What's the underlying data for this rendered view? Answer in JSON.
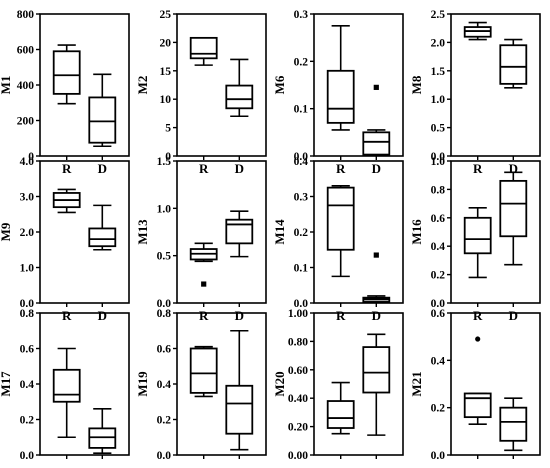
{
  "chart_data": [
    {
      "type": "box",
      "ylabel": "M1",
      "ylim": [
        0,
        800
      ],
      "yticks": [
        "0",
        "200",
        "400",
        "600",
        "800"
      ],
      "categories": [
        "R",
        "D"
      ],
      "boxes": [
        {
          "category": "R",
          "min": 295,
          "q1": 350,
          "median": 455,
          "q3": 590,
          "max": 625,
          "outliers": []
        },
        {
          "category": "D",
          "min": 55,
          "q1": 75,
          "median": 195,
          "q3": 330,
          "max": 460,
          "outliers": []
        }
      ]
    },
    {
      "type": "box",
      "ylabel": "M2",
      "ylim": [
        0,
        25
      ],
      "yticks": [
        "0",
        "5",
        "10",
        "15",
        "20",
        "25"
      ],
      "categories": [
        "R",
        "D"
      ],
      "boxes": [
        {
          "category": "R",
          "min": 16,
          "q1": 17.2,
          "median": 18,
          "q3": 20.8,
          "max": 20.8,
          "outliers": []
        },
        {
          "category": "D",
          "min": 7,
          "q1": 8.4,
          "median": 10,
          "q3": 12.4,
          "max": 17,
          "outliers": []
        }
      ]
    },
    {
      "type": "box",
      "ylabel": "M6",
      "ylim": [
        0,
        0.3
      ],
      "yticks": [
        "0.0",
        "0.1",
        "0.2",
        "0.3"
      ],
      "categories": [
        "R",
        "D"
      ],
      "boxes": [
        {
          "category": "R",
          "min": 0.055,
          "q1": 0.07,
          "median": 0.1,
          "q3": 0.18,
          "max": 0.275,
          "outliers": []
        },
        {
          "category": "D",
          "min": 0.001,
          "q1": 0.003,
          "median": 0.03,
          "q3": 0.05,
          "max": 0.055,
          "outliers": [
            0.145
          ]
        }
      ]
    },
    {
      "type": "box",
      "ylabel": "M8",
      "ylim": [
        0,
        2.5
      ],
      "yticks": [
        "0.0",
        "0.5",
        "1.0",
        "1.5",
        "2.0",
        "2.5"
      ],
      "categories": [
        "R",
        "D"
      ],
      "boxes": [
        {
          "category": "R",
          "min": 2.05,
          "q1": 2.1,
          "median": 2.2,
          "q3": 2.27,
          "max": 2.35,
          "outliers": []
        },
        {
          "category": "D",
          "min": 1.2,
          "q1": 1.27,
          "median": 1.57,
          "q3": 1.95,
          "max": 2.05,
          "outliers": []
        }
      ]
    },
    {
      "type": "box",
      "ylabel": "M9",
      "ylim": [
        0,
        4
      ],
      "yticks": [
        "0.0",
        "1.0",
        "2.0",
        "3.0",
        "4.0"
      ],
      "categories": [
        "R",
        "D"
      ],
      "boxes": [
        {
          "category": "R",
          "min": 2.55,
          "q1": 2.7,
          "median": 2.9,
          "q3": 3.1,
          "max": 3.2,
          "outliers": []
        },
        {
          "category": "D",
          "min": 1.5,
          "q1": 1.6,
          "median": 1.8,
          "q3": 2.1,
          "max": 2.75,
          "outliers": []
        }
      ]
    },
    {
      "type": "box",
      "ylabel": "M13",
      "ylim": [
        0,
        1.5
      ],
      "yticks": [
        "0.0",
        "0.5",
        "1.0",
        "1.5"
      ],
      "categories": [
        "R",
        "D"
      ],
      "boxes": [
        {
          "category": "R",
          "min": 0.44,
          "q1": 0.46,
          "median": 0.52,
          "q3": 0.57,
          "max": 0.63,
          "outliers": [
            0.2
          ]
        },
        {
          "category": "D",
          "min": 0.49,
          "q1": 0.63,
          "median": 0.83,
          "q3": 0.88,
          "max": 0.97,
          "outliers": []
        }
      ]
    },
    {
      "type": "box",
      "ylabel": "M14",
      "ylim": [
        0,
        0.4
      ],
      "yticks": [
        "0.0",
        "0.1",
        "0.2",
        "0.3",
        "0.4"
      ],
      "categories": [
        "R",
        "D"
      ],
      "boxes": [
        {
          "category": "R",
          "min": 0.075,
          "q1": 0.15,
          "median": 0.275,
          "q3": 0.325,
          "max": 0.33,
          "outliers": []
        },
        {
          "category": "D",
          "min": 0.001,
          "q1": 0.003,
          "median": 0.01,
          "q3": 0.015,
          "max": 0.02,
          "outliers": [
            0.135
          ]
        }
      ]
    },
    {
      "type": "box",
      "ylabel": "M16",
      "ylim": [
        0,
        1.0
      ],
      "yticks": [
        "0.0",
        "0.2",
        "0.4",
        "0.6",
        "0.8",
        "1.0"
      ],
      "categories": [
        "R",
        "D"
      ],
      "boxes": [
        {
          "category": "R",
          "min": 0.18,
          "q1": 0.35,
          "median": 0.45,
          "q3": 0.6,
          "max": 0.67,
          "outliers": []
        },
        {
          "category": "D",
          "min": 0.27,
          "q1": 0.47,
          "median": 0.7,
          "q3": 0.86,
          "max": 0.92,
          "outliers": []
        }
      ]
    },
    {
      "type": "box",
      "ylabel": "M17",
      "ylim": [
        0,
        0.8
      ],
      "yticks": [
        "0.0",
        "0.2",
        "0.4",
        "0.6",
        "0.8"
      ],
      "categories": [
        "R",
        "D"
      ],
      "boxes": [
        {
          "category": "R",
          "min": 0.1,
          "q1": 0.3,
          "median": 0.34,
          "q3": 0.48,
          "max": 0.6,
          "outliers": []
        },
        {
          "category": "D",
          "min": 0.01,
          "q1": 0.04,
          "median": 0.1,
          "q3": 0.15,
          "max": 0.26,
          "outliers": []
        }
      ]
    },
    {
      "type": "box",
      "ylabel": "M19",
      "ylim": [
        0,
        0.8
      ],
      "yticks": [
        "0.0",
        "0.2",
        "0.4",
        "0.6",
        "0.8"
      ],
      "categories": [
        "R",
        "D"
      ],
      "boxes": [
        {
          "category": "R",
          "min": 0.33,
          "q1": 0.35,
          "median": 0.46,
          "q3": 0.6,
          "max": 0.61,
          "outliers": []
        },
        {
          "category": "D",
          "min": 0.03,
          "q1": 0.12,
          "median": 0.29,
          "q3": 0.39,
          "max": 0.7,
          "outliers": []
        }
      ]
    },
    {
      "type": "box",
      "ylabel": "M20",
      "ylim": [
        0,
        1.0
      ],
      "yticks": [
        "0.00",
        "0.20",
        "0.40",
        "0.60",
        "0.80",
        "1.00"
      ],
      "categories": [
        "R",
        "D"
      ],
      "boxes": [
        {
          "category": "R",
          "min": 0.15,
          "q1": 0.19,
          "median": 0.26,
          "q3": 0.38,
          "max": 0.51,
          "outliers": []
        },
        {
          "category": "D",
          "min": 0.14,
          "q1": 0.44,
          "median": 0.58,
          "q3": 0.76,
          "max": 0.85,
          "outliers": []
        }
      ]
    },
    {
      "type": "box",
      "ylabel": "M21",
      "ylim": [
        0,
        0.6
      ],
      "yticks": [
        "0.0",
        "0.2",
        "0.4",
        "0.6"
      ],
      "categories": [
        "R",
        "D"
      ],
      "boxes": [
        {
          "category": "R",
          "min": 0.13,
          "q1": 0.16,
          "median": 0.24,
          "q3": 0.26,
          "max": 0.26,
          "outliers": [
            0.49
          ]
        },
        {
          "category": "D",
          "min": 0.02,
          "q1": 0.06,
          "median": 0.14,
          "q3": 0.2,
          "max": 0.24,
          "outliers": []
        }
      ]
    }
  ]
}
